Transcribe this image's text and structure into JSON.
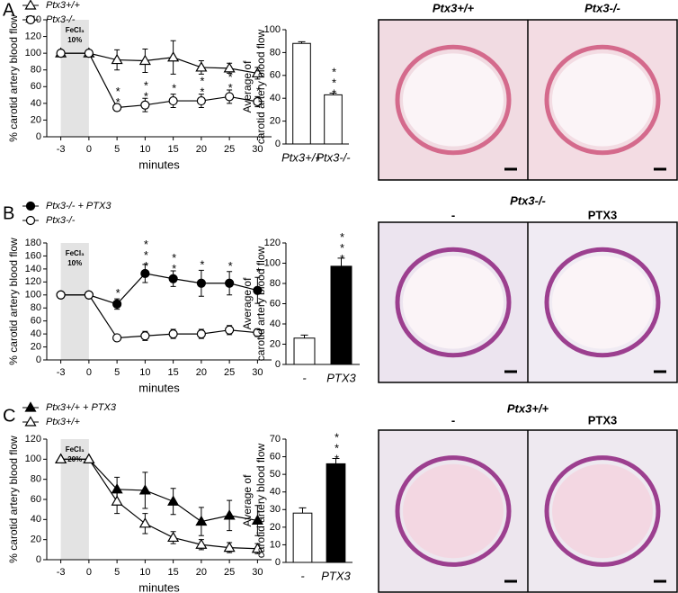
{
  "panel_labels": [
    "A",
    "B",
    "C"
  ],
  "chart_data": [
    {
      "type": "line",
      "xlabel": "minutes",
      "ylabel": "% carotid artery blood flow",
      "categories": [
        "-3",
        "0",
        "5",
        "10",
        "15",
        "20",
        "25",
        "30"
      ],
      "ylim": [
        0,
        140
      ],
      "yticks": [
        0,
        20,
        40,
        60,
        80,
        100,
        120,
        140
      ],
      "annotation": [
        "FeCl₃",
        "10%"
      ],
      "series": [
        {
          "name": "Ptx3+/+",
          "color": "#000000",
          "marker": "triangle",
          "filled": false,
          "values": [
            100,
            100,
            92,
            91,
            95,
            83,
            82,
            76
          ],
          "errors": [
            0,
            0,
            12,
            14,
            20,
            8,
            6,
            7
          ]
        },
        {
          "name": "Ptx3-/-",
          "color": "#000000",
          "marker": "circle",
          "filled": false,
          "values": [
            100,
            100,
            35,
            38,
            43,
            43,
            48,
            42
          ],
          "errors": [
            0,
            0,
            4,
            8,
            8,
            8,
            8,
            6
          ],
          "significance": [
            null,
            null,
            "**",
            "**",
            "*",
            "**",
            "**",
            "*"
          ]
        }
      ]
    },
    {
      "type": "bar",
      "ylabel": [
        "Average of",
        "carotid artery blood flow"
      ],
      "categories": [
        "Ptx3+/+",
        "Ptx3-/-"
      ],
      "values": [
        88,
        43
      ],
      "errors": [
        1.5,
        1.5
      ],
      "colors": [
        "#ffffff",
        "#ffffff"
      ],
      "significance": [
        null,
        "***"
      ],
      "ylim": [
        0,
        100
      ],
      "yticks": [
        0,
        20,
        40,
        60,
        80,
        100
      ]
    },
    {
      "type": "line",
      "xlabel": "minutes",
      "ylabel": "% carotid artery blood flow",
      "categories": [
        "-3",
        "0",
        "5",
        "10",
        "15",
        "20",
        "25",
        "30"
      ],
      "ylim": [
        0,
        180
      ],
      "yticks": [
        0,
        20,
        40,
        60,
        80,
        100,
        120,
        140,
        160,
        180
      ],
      "annotation": [
        "FeCl₃",
        "10%"
      ],
      "series": [
        {
          "name": "Ptx3-/- + PTX3",
          "color": "#000000",
          "marker": "circle",
          "filled": true,
          "values": [
            100,
            100,
            86,
            133,
            125,
            118,
            118,
            107
          ],
          "errors": [
            0,
            0,
            8,
            14,
            12,
            20,
            18,
            20
          ],
          "significance": [
            null,
            null,
            "*",
            "***",
            "**",
            "*",
            "*",
            "*"
          ]
        },
        {
          "name": "Ptx3-/-",
          "color": "#000000",
          "marker": "circle",
          "filled": false,
          "values": [
            100,
            100,
            34,
            37,
            40,
            40,
            46,
            42
          ],
          "errors": [
            0,
            0,
            3,
            7,
            7,
            7,
            7,
            6
          ]
        }
      ]
    },
    {
      "type": "bar",
      "ylabel": [
        "Average of",
        "carotid artery blood flow"
      ],
      "categories": [
        "-",
        "PTX3"
      ],
      "values": [
        26,
        97
      ],
      "errors": [
        3,
        8
      ],
      "colors": [
        "#ffffff",
        "#000000"
      ],
      "significance": [
        null,
        "***"
      ],
      "ylim": [
        0,
        120
      ],
      "yticks": [
        0,
        20,
        40,
        60,
        80,
        100,
        120
      ]
    },
    {
      "type": "line",
      "xlabel": "minutes",
      "ylabel": "% carotid artery blood flow",
      "categories": [
        "-3",
        "0",
        "5",
        "10",
        "15",
        "20",
        "25",
        "30"
      ],
      "ylim": [
        0,
        120
      ],
      "yticks": [
        0,
        20,
        40,
        60,
        80,
        100,
        120
      ],
      "annotation": [
        "FeCl₃",
        "20%"
      ],
      "series": [
        {
          "name": "Ptx3+/+ + PTX3",
          "color": "#000000",
          "marker": "triangle",
          "filled": true,
          "values": [
            100,
            100,
            70,
            69,
            58,
            38,
            44,
            39
          ],
          "errors": [
            0,
            0,
            12,
            18,
            13,
            14,
            15,
            15
          ]
        },
        {
          "name": "Ptx3+/+",
          "color": "#000000",
          "marker": "triangle",
          "filled": false,
          "values": [
            100,
            100,
            58,
            36,
            22,
            15,
            12,
            11
          ],
          "errors": [
            0,
            0,
            12,
            10,
            6,
            5,
            5,
            5
          ]
        }
      ]
    },
    {
      "type": "bar",
      "ylabel": [
        "Average of",
        "carotid artery blood flow"
      ],
      "categories": [
        "-",
        "PTX3"
      ],
      "values": [
        28,
        56
      ],
      "errors": [
        3,
        3
      ],
      "colors": [
        "#ffffff",
        "#000000"
      ],
      "significance": [
        null,
        "***"
      ],
      "ylim": [
        0,
        70
      ],
      "yticks": [
        0,
        10,
        20,
        30,
        40,
        50,
        60,
        70
      ]
    }
  ],
  "images": [
    {
      "labels": [
        "Ptx3+/+",
        "Ptx3-/-"
      ]
    },
    {
      "header": "Ptx3-/-",
      "labels": [
        "-",
        "PTX3"
      ]
    },
    {
      "header": "Ptx3+/+",
      "labels": [
        "-",
        "PTX3"
      ]
    }
  ]
}
